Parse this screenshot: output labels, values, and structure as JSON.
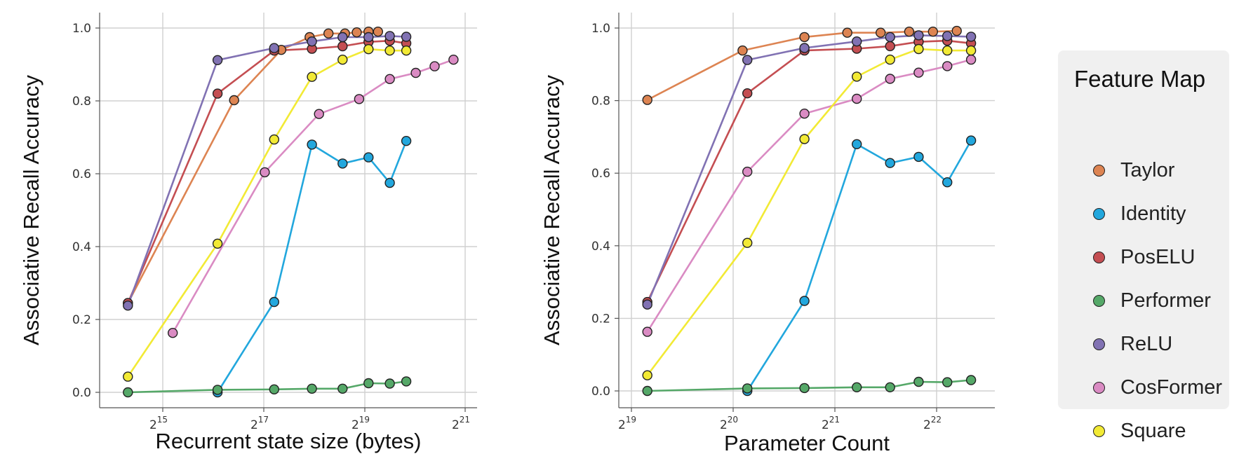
{
  "legend": {
    "title": "Feature Map",
    "entries": [
      {
        "name": "Taylor",
        "color": "#dd8452"
      },
      {
        "name": "Identity",
        "color": "#22a7dd"
      },
      {
        "name": "PosELU",
        "color": "#c44e52"
      },
      {
        "name": "Performer",
        "color": "#55a868"
      },
      {
        "name": "ReLU",
        "color": "#8172b3"
      },
      {
        "name": "CosFormer",
        "color": "#da8bc3"
      },
      {
        "name": "Square",
        "color": "#f2ea35"
      }
    ]
  },
  "chart_data": [
    {
      "type": "line",
      "xlabel": "Recurrent state size (bytes)",
      "ylabel": "Associative Recall Accuracy",
      "xscale": "log2",
      "xticks": [
        {
          "base": "2",
          "exp": "15"
        },
        {
          "base": "2",
          "exp": "17"
        },
        {
          "base": "2",
          "exp": "19"
        },
        {
          "base": "2",
          "exp": "21"
        }
      ],
      "yticks": [
        "0.0",
        "0.2",
        "0.4",
        "0.6",
        "0.8",
        "1.0"
      ],
      "ylim": [
        -0.05,
        1.05
      ],
      "grid": true,
      "series": [
        {
          "name": "Taylor",
          "color": "#dd8452",
          "x_exp": [
            14.1,
            16.35,
            17.35,
            17.95,
            18.35,
            18.7,
            18.95,
            19.2,
            19.4
          ],
          "y": [
            0.245,
            0.802,
            0.94,
            0.975,
            0.985,
            0.985,
            0.988,
            0.99,
            0.99
          ]
        },
        {
          "name": "Identity",
          "color": "#22a7dd",
          "x_exp": [
            16.0,
            17.2,
            18.0,
            18.65,
            19.2,
            19.65,
            20.0
          ],
          "y": [
            0.0,
            0.248,
            0.68,
            0.628,
            0.645,
            0.575,
            0.69
          ]
        },
        {
          "name": "PosELU",
          "color": "#c44e52",
          "x_exp": [
            14.1,
            16.0,
            17.2,
            18.0,
            18.65,
            19.2,
            19.65,
            20.0
          ],
          "y": [
            0.245,
            0.82,
            0.938,
            0.943,
            0.95,
            0.962,
            0.965,
            0.958
          ]
        },
        {
          "name": "Performer",
          "color": "#55a868",
          "x_exp": [
            14.1,
            16.0,
            17.2,
            18.0,
            18.65,
            19.2,
            19.65,
            20.0
          ],
          "y": [
            0.0,
            0.007,
            0.008,
            0.01,
            0.01,
            0.025,
            0.024,
            0.03
          ]
        },
        {
          "name": "ReLU",
          "color": "#8172b3",
          "x_exp": [
            14.1,
            16.0,
            17.2,
            18.0,
            18.65,
            19.2,
            19.65,
            20.0
          ],
          "y": [
            0.238,
            0.912,
            0.945,
            0.963,
            0.975,
            0.975,
            0.978,
            0.976
          ]
        },
        {
          "name": "CosFormer",
          "color": "#da8bc3",
          "x_exp": [
            15.05,
            17.0,
            18.15,
            19.0,
            19.65,
            20.2,
            20.6,
            21.0
          ],
          "y": [
            0.163,
            0.604,
            0.764,
            0.805,
            0.86,
            0.877,
            0.895,
            0.913
          ]
        },
        {
          "name": "Square",
          "color": "#f2ea35",
          "x_exp": [
            14.1,
            16.0,
            17.2,
            18.0,
            18.65,
            19.2,
            19.65,
            20.0
          ],
          "y": [
            0.043,
            0.408,
            0.694,
            0.866,
            0.913,
            0.942,
            0.938,
            0.938
          ]
        }
      ]
    },
    {
      "type": "line",
      "xlabel": "Parameter Count",
      "ylabel": "Associative Recall Accuracy",
      "xscale": "log2",
      "xticks": [
        {
          "base": "2",
          "exp": "19"
        },
        {
          "base": "2",
          "exp": "20"
        },
        {
          "base": "2",
          "exp": "21"
        },
        {
          "base": "2",
          "exp": "22"
        }
      ],
      "yticks": [
        "0.0",
        "0.2",
        "0.4",
        "0.6",
        "0.8",
        "1.0"
      ],
      "ylim": [
        -0.05,
        1.05
      ],
      "grid": true,
      "series": [
        {
          "name": "Taylor",
          "color": "#dd8452",
          "x_exp": [
            19.05,
            20.05,
            20.7,
            21.15,
            21.5,
            21.8,
            22.05,
            22.3
          ],
          "y": [
            0.802,
            0.938,
            0.975,
            0.987,
            0.987,
            0.99,
            0.99,
            0.992
          ]
        },
        {
          "name": "Identity",
          "color": "#22a7dd",
          "x_exp": [
            20.1,
            20.7,
            21.25,
            21.6,
            21.9,
            22.2,
            22.45
          ],
          "y": [
            0.0,
            0.248,
            0.68,
            0.628,
            0.645,
            0.575,
            0.69
          ]
        },
        {
          "name": "PosELU",
          "color": "#c44e52",
          "x_exp": [
            19.05,
            20.1,
            20.7,
            21.25,
            21.6,
            21.9,
            22.2,
            22.45
          ],
          "y": [
            0.245,
            0.82,
            0.938,
            0.943,
            0.95,
            0.962,
            0.965,
            0.958
          ]
        },
        {
          "name": "Performer",
          "color": "#55a868",
          "x_exp": [
            19.05,
            20.1,
            20.7,
            21.25,
            21.6,
            21.9,
            22.2,
            22.45
          ],
          "y": [
            0.0,
            0.007,
            0.008,
            0.01,
            0.01,
            0.025,
            0.024,
            0.03
          ]
        },
        {
          "name": "ReLU",
          "color": "#8172b3",
          "x_exp": [
            19.05,
            20.1,
            20.7,
            21.25,
            21.6,
            21.9,
            22.2,
            22.45
          ],
          "y": [
            0.238,
            0.912,
            0.945,
            0.963,
            0.975,
            0.98,
            0.978,
            0.976
          ]
        },
        {
          "name": "CosFormer",
          "color": "#da8bc3",
          "x_exp": [
            19.05,
            20.1,
            20.7,
            21.25,
            21.6,
            21.9,
            22.2,
            22.45
          ],
          "y": [
            0.163,
            0.604,
            0.764,
            0.805,
            0.86,
            0.877,
            0.895,
            0.913
          ]
        },
        {
          "name": "Square",
          "color": "#f2ea35",
          "x_exp": [
            19.05,
            20.1,
            20.7,
            21.25,
            21.6,
            21.9,
            22.2,
            22.45
          ],
          "y": [
            0.043,
            0.408,
            0.694,
            0.866,
            0.913,
            0.942,
            0.938,
            0.938
          ]
        }
      ]
    }
  ]
}
